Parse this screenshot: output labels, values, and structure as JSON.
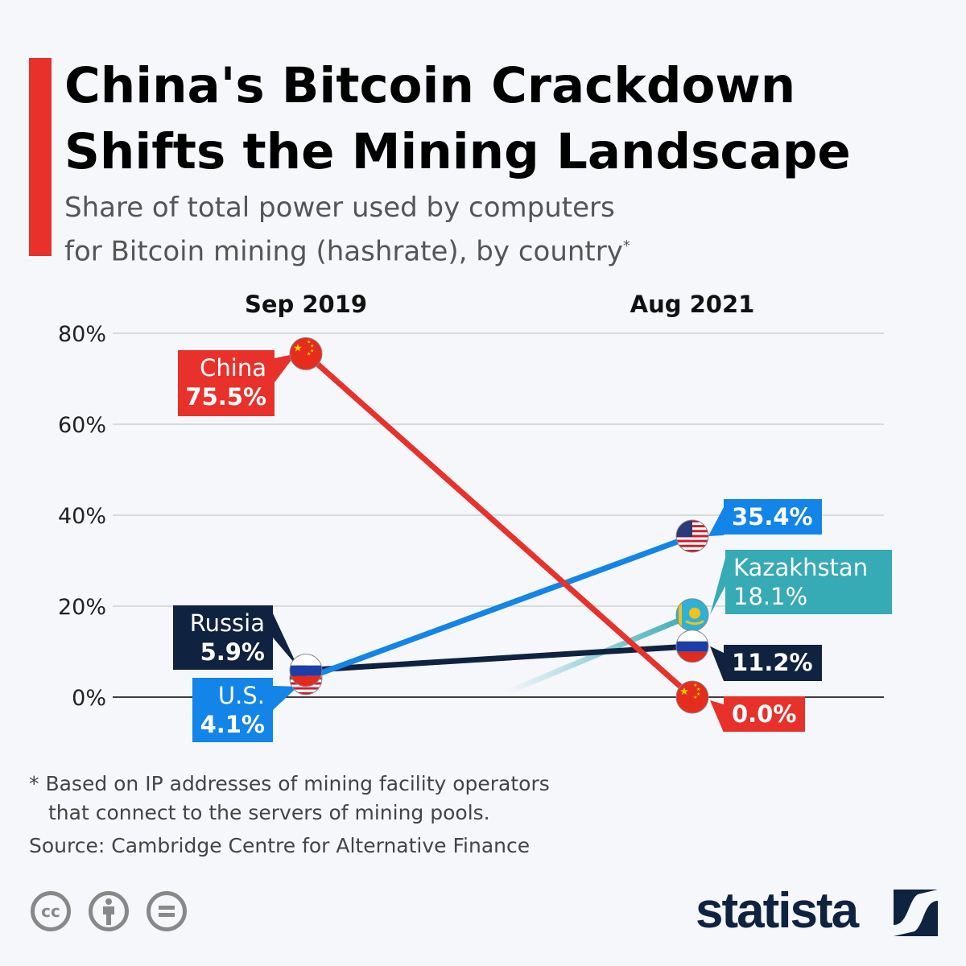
{
  "header": {
    "title_line1": "China's Bitcoin Crackdown",
    "title_line2": "Shifts the Mining Landscape",
    "subtitle_line1": "Share of total power used by computers",
    "subtitle_line2": "for Bitcoin mining (hashrate), by country",
    "subtitle_mark": "*"
  },
  "chart_data": {
    "type": "line",
    "title": "China's Bitcoin Crackdown Shifts the Mining Landscape",
    "subtitle": "Share of total power used by computers for Bitcoin mining (hashrate), by country*",
    "categories": [
      "Sep 2019",
      "Aug 2021"
    ],
    "yticks": [
      "0%",
      "20%",
      "40%",
      "60%",
      "80%"
    ],
    "ylim": [
      0,
      80
    ],
    "grid": true,
    "series": [
      {
        "name": "China",
        "values": [
          75.5,
          0.0
        ],
        "labels": [
          "75.5%",
          "0.0%"
        ],
        "color": "#e8312a",
        "flag": "china-flag"
      },
      {
        "name": "U.S.",
        "values": [
          4.1,
          35.4
        ],
        "labels": [
          "4.1%",
          "35.4%"
        ],
        "color": "#1384e8",
        "flag": "us-flag"
      },
      {
        "name": "Kazakhstan",
        "values": [
          null,
          18.1
        ],
        "labels": [
          "",
          "18.1%"
        ],
        "color": "#36aab5",
        "flag": "kazakhstan-flag"
      },
      {
        "name": "Russia",
        "values": [
          5.9,
          11.2
        ],
        "labels": [
          "5.9%",
          "11.2%"
        ],
        "color": "#0f2240",
        "flag": "russia-flag"
      }
    ]
  },
  "footer": {
    "note_line1": "* Based on IP addresses of mining facility operators",
    "note_line2": "that connect to the servers of mining pools.",
    "source": "Source: Cambridge Centre for Alternative Finance",
    "license_icons": [
      "cc-icon",
      "attribution-icon",
      "no-derivatives-icon"
    ],
    "logo": "statista"
  }
}
